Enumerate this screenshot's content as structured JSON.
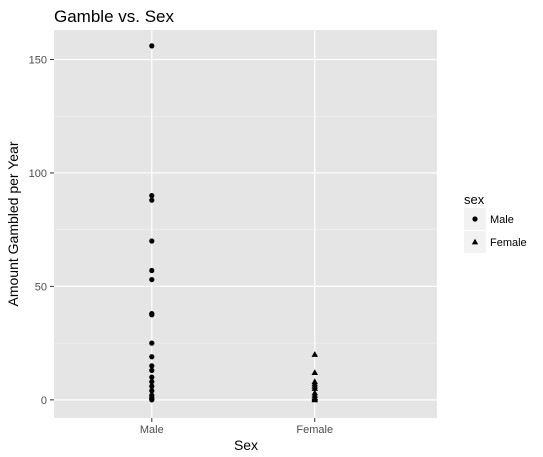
{
  "chart_data": {
    "type": "scatter",
    "title": "Gamble vs. Sex",
    "xlabel": "Sex",
    "ylabel": "Amount Gambled per Year",
    "categories": [
      "Male",
      "Female"
    ],
    "ylim": [
      -8,
      163
    ],
    "yticks": [
      0,
      50,
      100,
      150
    ],
    "grid": true,
    "legend": {
      "title": "sex",
      "position": "right",
      "entries": [
        "Male",
        "Female"
      ]
    },
    "series": [
      {
        "name": "Male",
        "shape": "circle",
        "x": "Male",
        "values": [
          156,
          90,
          88,
          70,
          57,
          53,
          38,
          37.5,
          25,
          19,
          15,
          13,
          10,
          8,
          6,
          4,
          2,
          1,
          0.3,
          0
        ]
      },
      {
        "name": "Female",
        "shape": "triangle",
        "x": "Female",
        "values": [
          20,
          12,
          8,
          7,
          6,
          5,
          3,
          2,
          1,
          0.5,
          0
        ]
      }
    ]
  }
}
